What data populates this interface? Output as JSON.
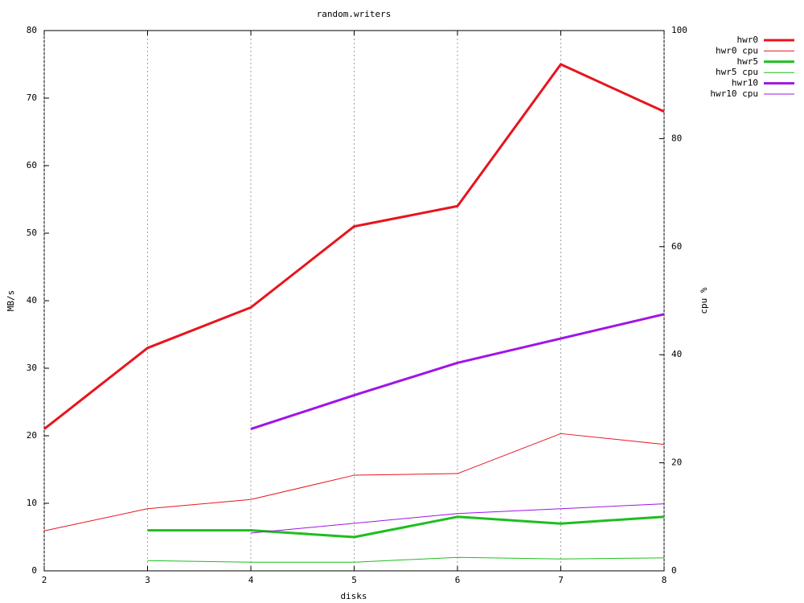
{
  "chart_data": {
    "type": "line",
    "title": "random.writers",
    "x_label": "disks",
    "y_label": "MB/s",
    "y2_label": "cpu %",
    "x": [
      2,
      3,
      4,
      5,
      6,
      7,
      8
    ],
    "xlim": [
      2,
      8
    ],
    "xticks": [
      2,
      3,
      4,
      5,
      6,
      7,
      8
    ],
    "ylim": [
      0,
      80
    ],
    "yticks": [
      0,
      10,
      20,
      30,
      40,
      50,
      60,
      70,
      80
    ],
    "y2lim": [
      0,
      100
    ],
    "y2ticks": [
      0,
      20,
      40,
      60,
      80,
      100
    ],
    "grid": "x",
    "legend": "top-right-outside",
    "series": [
      {
        "name": "hwr0",
        "color": "#e8141e",
        "line_width": 3,
        "values": [
          21,
          33,
          39,
          51,
          54,
          75,
          68
        ]
      },
      {
        "name": "hwr0 cpu",
        "color": "#e8141e",
        "line_width": 1,
        "axis": "y2",
        "values": [
          7.4,
          11.5,
          13.2,
          17.7,
          18.0,
          25.4,
          23.4
        ]
      },
      {
        "name": "hwr5",
        "color": "#1ebe1e",
        "line_width": 3,
        "values": [
          null,
          6,
          6,
          5,
          8,
          7,
          8
        ]
      },
      {
        "name": "hwr5 cpu",
        "color": "#1ebe1e",
        "line_width": 1,
        "axis": "y2",
        "values": [
          null,
          1.9,
          1.6,
          1.6,
          2.5,
          2.2,
          2.4
        ]
      },
      {
        "name": "hwr10",
        "color": "#a014e6",
        "line_width": 3,
        "values": [
          null,
          null,
          21,
          26,
          30.8,
          34.4,
          38
        ]
      },
      {
        "name": "hwr10 cpu",
        "color": "#a014e6",
        "line_width": 1,
        "axis": "y2",
        "values": [
          null,
          null,
          7.0,
          8.8,
          10.6,
          11.5,
          12.4
        ]
      }
    ]
  }
}
